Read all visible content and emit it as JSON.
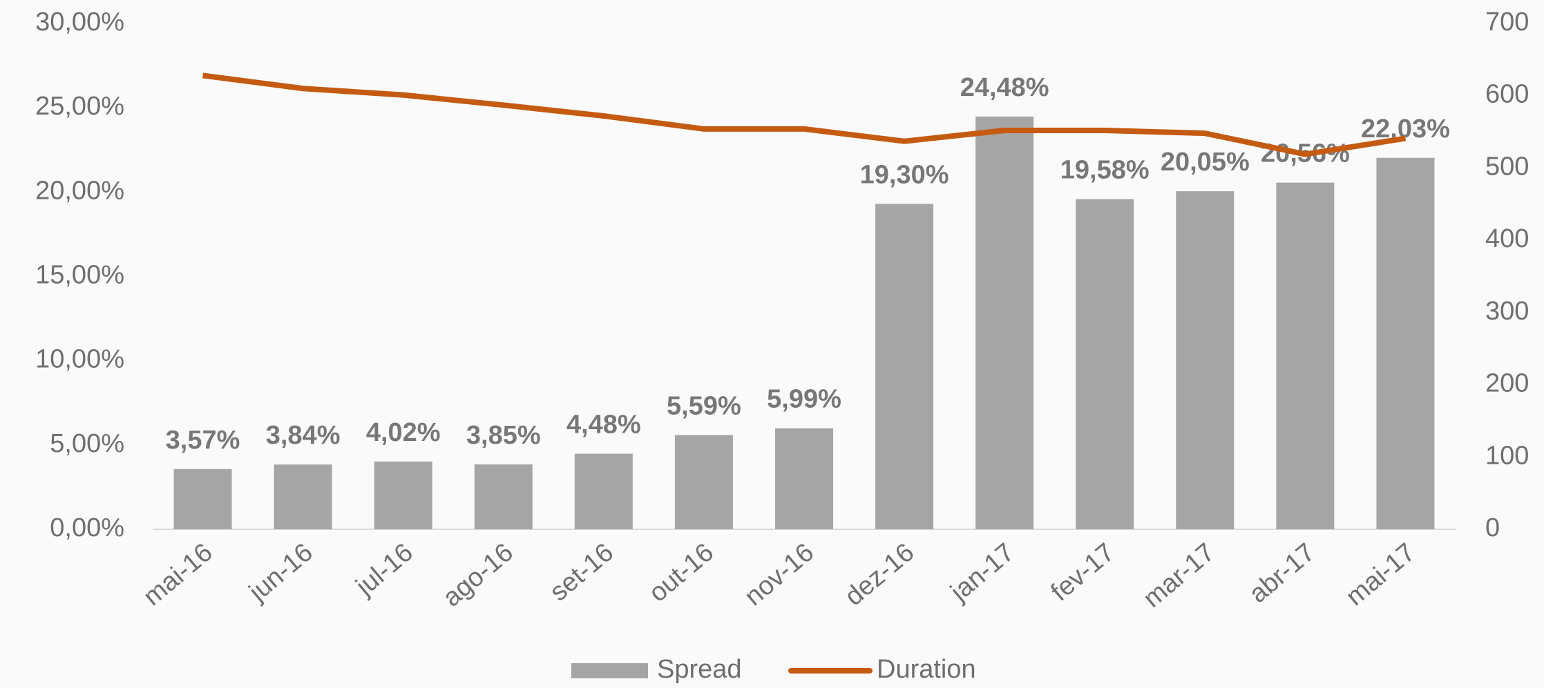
{
  "chart_data": {
    "type": "bar",
    "categories": [
      "mai-16",
      "jun-16",
      "jul-16",
      "ago-16",
      "set-16",
      "out-16",
      "nov-16",
      "dez-16",
      "jan-17",
      "fev-17",
      "mar-17",
      "abr-17",
      "mai-17"
    ],
    "series": [
      {
        "name": "Spread",
        "type": "bar",
        "color": "#a5a5a5",
        "values": [
          3.57,
          3.84,
          4.02,
          3.85,
          4.48,
          5.59,
          5.99,
          19.3,
          24.48,
          19.58,
          20.05,
          20.56,
          22.03
        ],
        "value_labels": [
          "3,57%",
          "3,84%",
          "4,02%",
          "3,85%",
          "4,48%",
          "5,59%",
          "5,99%",
          "19,30%",
          "24,48%",
          "19,58%",
          "20,05%",
          "20,56%",
          "22,03%"
        ]
      },
      {
        "name": "Duration",
        "type": "line",
        "axis": "y2",
        "color": "#c55a11",
        "values": [
          628,
          610,
          601,
          587,
          572,
          554,
          554,
          537,
          552,
          552,
          548,
          519,
          541
        ]
      }
    ],
    "ylim": [
      0,
      30
    ],
    "yticks": [
      {
        "value": 0,
        "label": "0,00%"
      },
      {
        "value": 5,
        "label": "5,00%"
      },
      {
        "value": 10,
        "label": "10,00%"
      },
      {
        "value": 15,
        "label": "15,00%"
      },
      {
        "value": 20,
        "label": "20,00%"
      },
      {
        "value": 25,
        "label": "25,00%"
      },
      {
        "value": 30,
        "label": "30,00%"
      }
    ],
    "y2lim": [
      0,
      700
    ],
    "y2ticks": [
      0,
      100,
      200,
      300,
      400,
      500,
      600,
      700
    ],
    "grid": false,
    "legend": "bottom"
  }
}
